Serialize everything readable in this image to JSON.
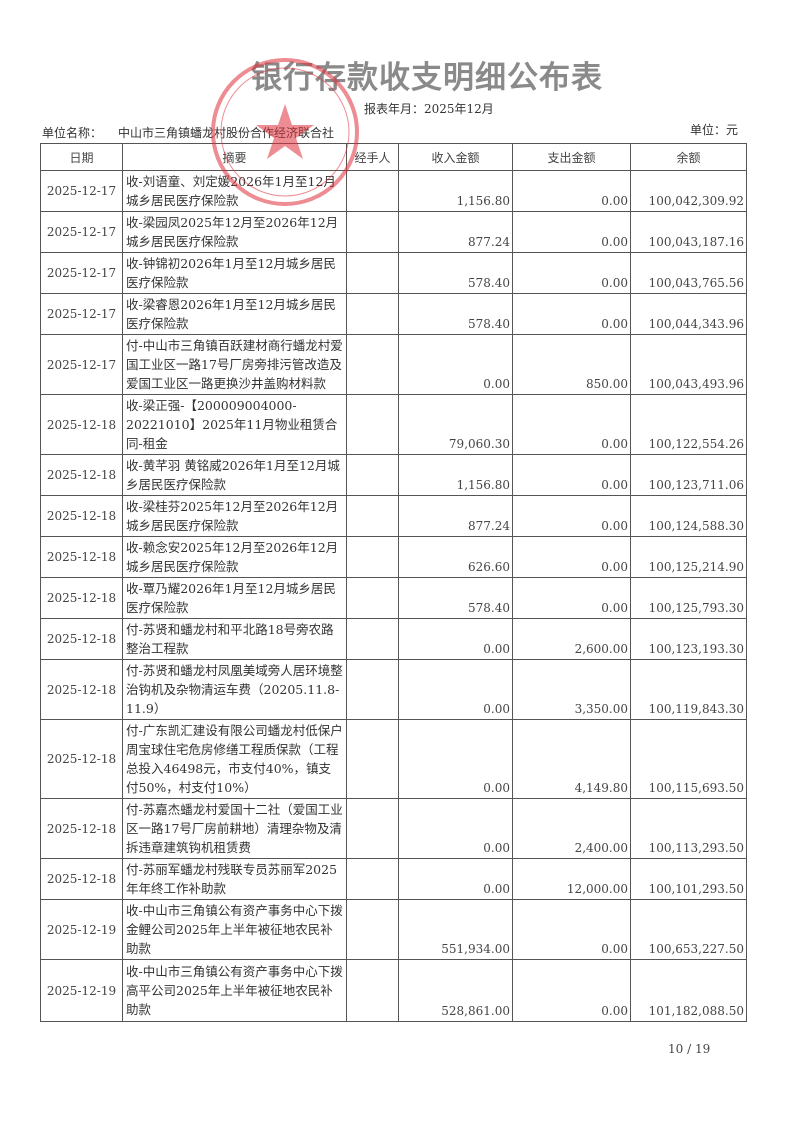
{
  "document": {
    "title": "银行存款收支明细公布表",
    "period": "报表年月：2025年12月",
    "unit_name_label": "单位名称：",
    "unit_name": "中山市三角镇蟠龙村股份合作经济联合社",
    "unit_label": "单位：元",
    "stamp_text": "中山市三角镇蟠龙村股份合作经济联合社",
    "stamp_color": "#e0303a",
    "page_number": "10 / 19"
  },
  "table": {
    "headers": [
      "日期",
      "摘要",
      "经手人",
      "收入金额",
      "支出金额",
      "余额"
    ],
    "rows": [
      {
        "date": "2025-12-17",
        "summary": "收-刘语童、刘定媛2026年1月至12月城乡居民医疗保险款",
        "handler": "",
        "income": "1,156.80",
        "expense": "0.00",
        "balance": "100,042,309.92"
      },
      {
        "date": "2025-12-17",
        "summary": "收-梁园凤2025年12月至2026年12月城乡居民医疗保险款",
        "handler": "",
        "income": "877.24",
        "expense": "0.00",
        "balance": "100,043,187.16"
      },
      {
        "date": "2025-12-17",
        "summary": "收-钟锦初2026年1月至12月城乡居民医疗保险款",
        "handler": "",
        "income": "578.40",
        "expense": "0.00",
        "balance": "100,043,765.56"
      },
      {
        "date": "2025-12-17",
        "summary": "收-梁睿恩2026年1月至12月城乡居民医疗保险款",
        "handler": "",
        "income": "578.40",
        "expense": "0.00",
        "balance": "100,044,343.96"
      },
      {
        "date": "2025-12-17",
        "summary": "付-中山市三角镇百跃建材商行蟠龙村爱国工业区一路17号厂房旁排污管改造及爱国工业区一路更换沙井盖购材料款",
        "handler": "",
        "income": "0.00",
        "expense": "850.00",
        "balance": "100,043,493.96"
      },
      {
        "date": "2025-12-18",
        "summary": "收-梁正强-【200009004000-20221010】2025年11月物业租赁合同-租金",
        "handler": "",
        "income": "79,060.30",
        "expense": "0.00",
        "balance": "100,122,554.26"
      },
      {
        "date": "2025-12-18",
        "summary": "收-黄芊羽 黄铭威2026年1月至12月城乡居民医疗保险款",
        "handler": "",
        "income": "1,156.80",
        "expense": "0.00",
        "balance": "100,123,711.06"
      },
      {
        "date": "2025-12-18",
        "summary": "收-梁桂芬2025年12月至2026年12月城乡居民医疗保险款",
        "handler": "",
        "income": "877.24",
        "expense": "0.00",
        "balance": "100,124,588.30"
      },
      {
        "date": "2025-12-18",
        "summary": "收-赖念安2025年12月至2026年12月城乡居民医疗保险款",
        "handler": "",
        "income": "626.60",
        "expense": "0.00",
        "balance": "100,125,214.90"
      },
      {
        "date": "2025-12-18",
        "summary": "收-覃乃耀2026年1月至12月城乡居民医疗保险款",
        "handler": "",
        "income": "578.40",
        "expense": "0.00",
        "balance": "100,125,793.30"
      },
      {
        "date": "2025-12-18",
        "summary": "付-苏贤和蟠龙村和平北路18号旁农路整治工程款",
        "handler": "",
        "income": "0.00",
        "expense": "2,600.00",
        "balance": "100,123,193.30"
      },
      {
        "date": "2025-12-18",
        "summary": "付-苏贤和蟠龙村凤凰美域旁人居环境整治钩机及杂物清运车费（20205.11.8-11.9）",
        "handler": "",
        "income": "0.00",
        "expense": "3,350.00",
        "balance": "100,119,843.30"
      },
      {
        "date": "2025-12-18",
        "summary": "付-广东凯汇建设有限公司蟠龙村低保户周宝球住宅危房修缮工程质保款（工程总投入46498元，市支付40%，镇支付50%，村支付10%）",
        "handler": "",
        "income": "0.00",
        "expense": "4,149.80",
        "balance": "100,115,693.50"
      },
      {
        "date": "2025-12-18",
        "summary": "付-苏嘉杰蟠龙村爱国十二社（爱国工业区一路17号厂房前耕地）清理杂物及清拆违章建筑钩机租赁费",
        "handler": "",
        "income": "0.00",
        "expense": "2,400.00",
        "balance": "100,113,293.50"
      },
      {
        "date": "2025-12-18",
        "summary": "付-苏丽军蟠龙村残联专员苏丽军2025年年终工作补助款",
        "handler": "",
        "income": "0.00",
        "expense": "12,000.00",
        "balance": "100,101,293.50"
      },
      {
        "date": "2025-12-19",
        "summary": "收-中山市三角镇公有资产事务中心下拨金鲤公司2025年上半年被征地农民补助款",
        "handler": "",
        "income": "551,934.00",
        "expense": "0.00",
        "balance": "100,653,227.50"
      },
      {
        "date": "2025-12-19",
        "summary": "收-中山市三角镇公有资产事务中心下拨高平公司2025年上半年被征地农民补助款",
        "handler": "",
        "income": "528,861.00",
        "expense": "0.00",
        "balance": "101,182,088.50"
      }
    ]
  }
}
